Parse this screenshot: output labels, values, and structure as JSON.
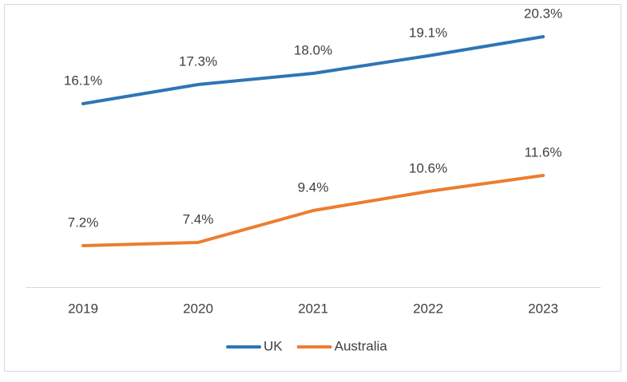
{
  "chart_data": {
    "type": "line",
    "categories": [
      "2019",
      "2020",
      "2021",
      "2022",
      "2023"
    ],
    "series": [
      {
        "name": "UK",
        "color": "#2e75b6",
        "values": [
          16.1,
          17.3,
          18.0,
          19.1,
          20.3
        ],
        "value_labels": [
          "16.1%",
          "17.3%",
          "18.0%",
          "19.1%",
          "20.3%"
        ]
      },
      {
        "name": "Australia",
        "color": "#ed7d31",
        "values": [
          7.2,
          7.4,
          9.4,
          10.6,
          11.6
        ],
        "value_labels": [
          "7.2%",
          "7.4%",
          "9.4%",
          "10.6%",
          "11.6%"
        ]
      }
    ],
    "ylim": [
      4.6,
      21.6
    ],
    "grid": false,
    "legend": "bottom"
  }
}
